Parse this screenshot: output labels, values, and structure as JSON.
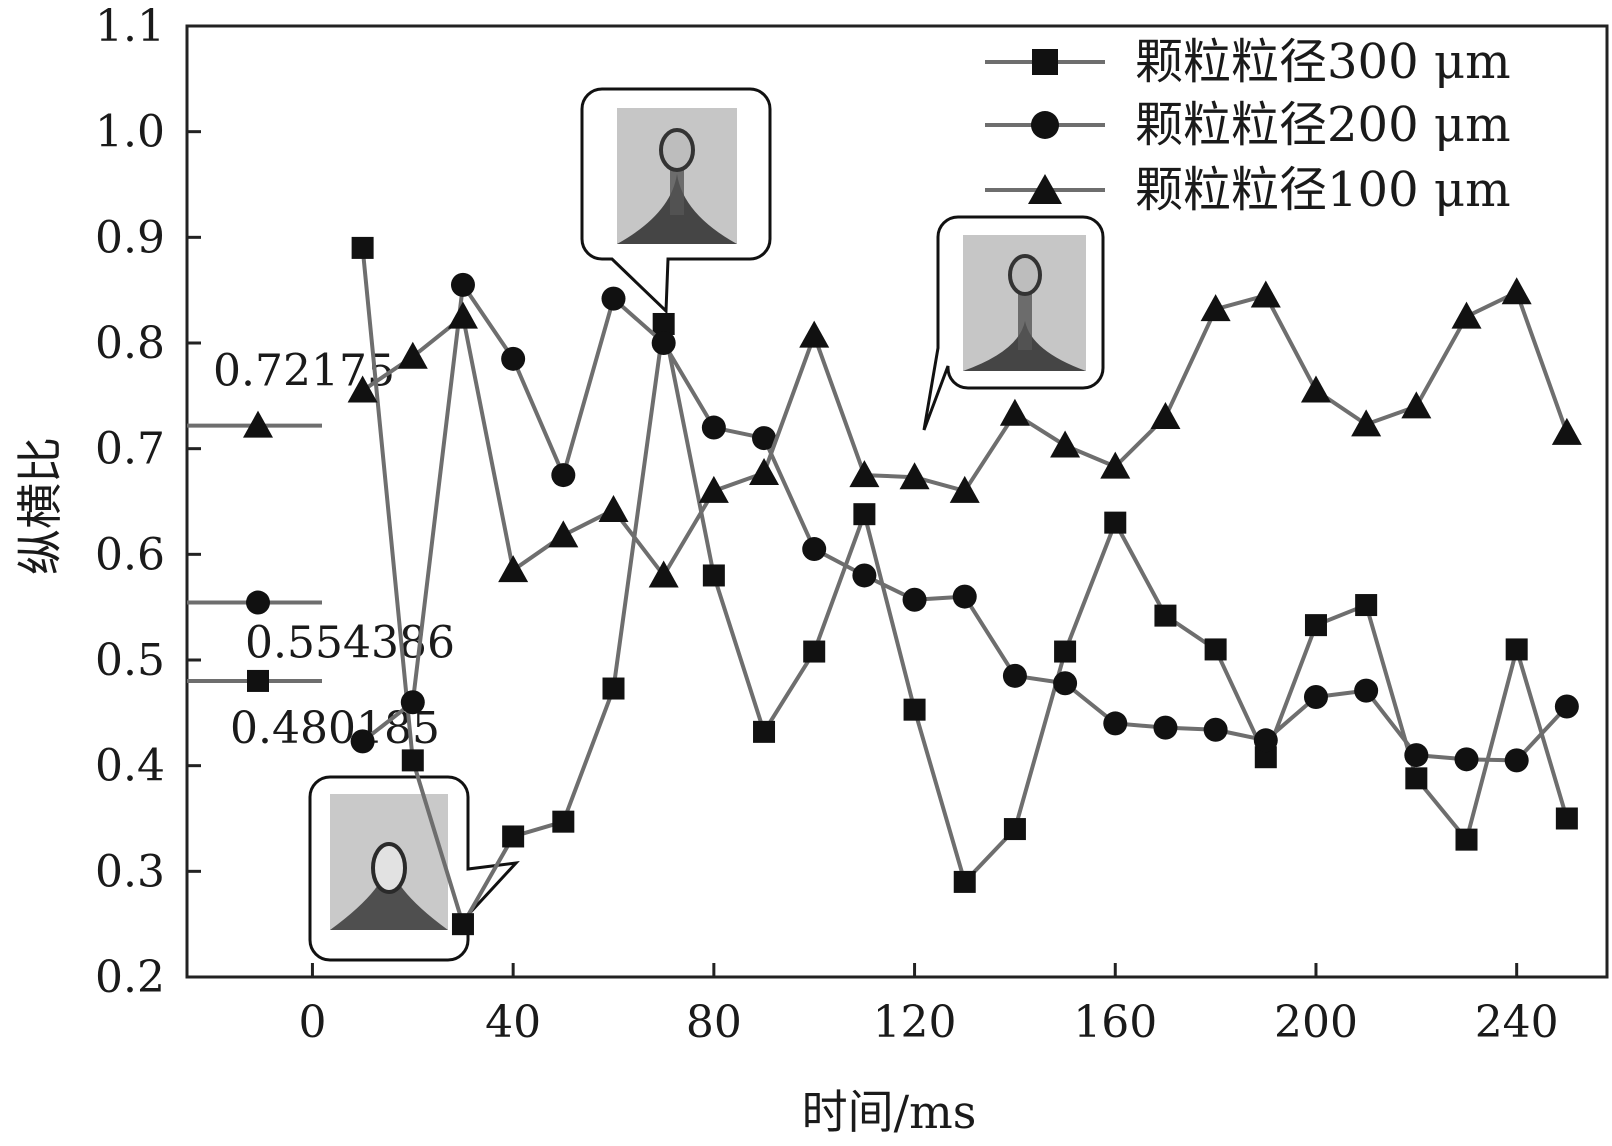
{
  "chart_data": {
    "type": "line",
    "title": "",
    "xlabel": "时间/ms",
    "ylabel": "纵横比",
    "xlim": [
      -25,
      258
    ],
    "ylim": [
      0.2,
      1.1
    ],
    "xticks": [
      0,
      40,
      80,
      120,
      160,
      200,
      240
    ],
    "yticks": [
      0.2,
      0.3,
      0.4,
      0.5,
      0.6,
      0.7,
      0.8,
      0.9,
      1.0,
      1.1
    ],
    "xtick_labels": [
      "0",
      "40",
      "80",
      "120",
      "160",
      "200",
      "240"
    ],
    "ytick_labels": [
      "0.2",
      "0.3",
      "0.4",
      "0.5",
      "0.6",
      "0.7",
      "0.8",
      "0.9",
      "1.0",
      "1.1"
    ],
    "grid": false,
    "legend_position": "top-right",
    "x": [
      10,
      20,
      30,
      40,
      50,
      60,
      70,
      80,
      90,
      100,
      110,
      120,
      130,
      140,
      150,
      160,
      170,
      180,
      190,
      200,
      210,
      220,
      230,
      240,
      250
    ],
    "series": [
      {
        "name": "颗粒粒径300 μm",
        "marker": "square",
        "values": [
          0.89,
          0.405,
          0.25,
          0.333,
          0.347,
          0.473,
          0.818,
          0.58,
          0.432,
          0.508,
          0.638,
          0.453,
          0.29,
          0.34,
          0.508,
          0.63,
          0.542,
          0.51,
          0.408,
          0.533,
          0.552,
          0.388,
          0.33,
          0.51,
          0.35
        ],
        "mean": 0.480185,
        "mean_label": "0.480185"
      },
      {
        "name": "颗粒粒径200 μm",
        "marker": "circle",
        "values": [
          0.423,
          0.46,
          0.855,
          0.785,
          0.675,
          0.842,
          0.8,
          0.72,
          0.71,
          0.605,
          0.58,
          0.557,
          0.56,
          0.485,
          0.478,
          0.44,
          0.436,
          0.434,
          0.424,
          0.465,
          0.471,
          0.41,
          0.406,
          0.405,
          0.456
        ],
        "mean": 0.554386,
        "mean_label": "0.554386"
      },
      {
        "name": "颗粒粒径100 μm",
        "marker": "triangle",
        "values": [
          0.755,
          0.787,
          0.825,
          0.585,
          0.618,
          0.642,
          0.58,
          0.66,
          0.677,
          0.807,
          0.675,
          0.673,
          0.66,
          0.733,
          0.703,
          0.683,
          0.73,
          0.832,
          0.845,
          0.755,
          0.723,
          0.74,
          0.825,
          0.848,
          0.715
        ],
        "mean": 0.72175,
        "mean_label": "0.72175"
      }
    ],
    "colors": {
      "line": "#6e6e6e",
      "marker": "#111111",
      "axis": "#222222"
    }
  }
}
